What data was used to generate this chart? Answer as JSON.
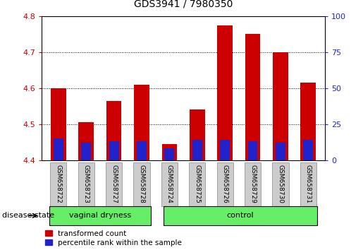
{
  "title": "GDS3941 / 7980350",
  "samples": [
    "GSM658722",
    "GSM658723",
    "GSM658727",
    "GSM658728",
    "GSM658724",
    "GSM658725",
    "GSM658726",
    "GSM658729",
    "GSM658730",
    "GSM658731"
  ],
  "transformed_count": [
    4.6,
    4.505,
    4.565,
    4.61,
    4.445,
    4.54,
    4.775,
    4.75,
    4.7,
    4.615
  ],
  "percentile_rank_pct": [
    15,
    12,
    13,
    13,
    8,
    14,
    14,
    13,
    12,
    14
  ],
  "ylim_left": [
    4.4,
    4.8
  ],
  "ylim_right": [
    0,
    100
  ],
  "yticks_left": [
    4.4,
    4.5,
    4.6,
    4.7,
    4.8
  ],
  "yticks_right": [
    0,
    25,
    50,
    75,
    100
  ],
  "bar_bottom": 4.4,
  "red_color": "#cc0000",
  "blue_color": "#2222cc",
  "group1_label": "vaginal dryness",
  "group2_label": "control",
  "group1_count": 4,
  "group2_count": 6,
  "disease_state_label": "disease state",
  "legend_red": "transformed count",
  "legend_blue": "percentile rank within the sample",
  "group_bg_color": "#66ee66",
  "tick_bg_color": "#cccccc",
  "bar_width": 0.55,
  "blue_bar_width": 0.35
}
